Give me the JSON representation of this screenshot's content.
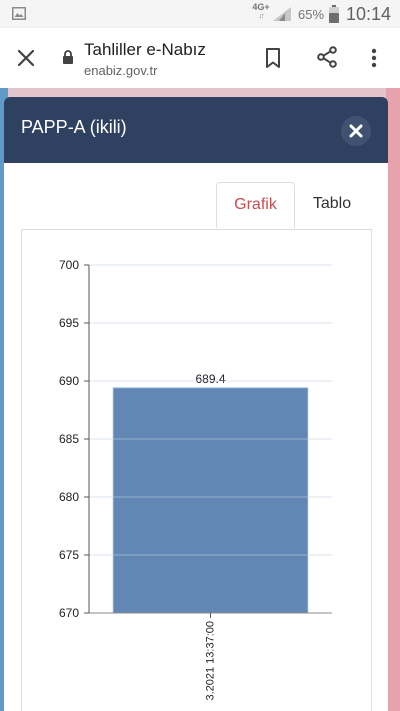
{
  "status_bar": {
    "network": "4G+",
    "battery": "65%",
    "time": "10:14"
  },
  "browser": {
    "title": "Tahliller e-Nabız",
    "url": "enabiz.gov.tr"
  },
  "modal": {
    "title": "PAPP-A (ikili)",
    "tabs": [
      {
        "label": "Grafik",
        "active": true
      },
      {
        "label": "Tablo",
        "active": false
      }
    ]
  },
  "colors": {
    "header": "#2f4160",
    "bar": "#6387b5",
    "active_tab": "#c64c4f"
  },
  "chart_data": {
    "type": "bar",
    "categories": [
      "3.2021 13:37:00"
    ],
    "values": [
      689.4
    ],
    "data_labels": [
      "689.4"
    ],
    "ylim": [
      670,
      700
    ],
    "yticks": [
      670,
      675,
      680,
      685,
      690,
      695,
      700
    ],
    "grid": true
  }
}
